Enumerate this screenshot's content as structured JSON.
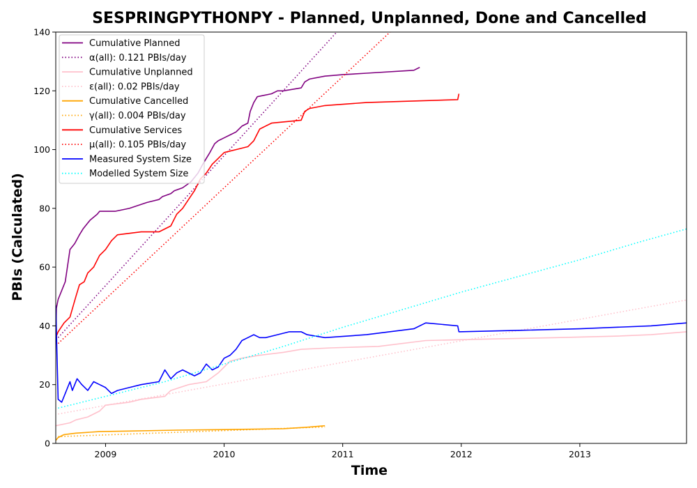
{
  "chart_data": {
    "type": "line",
    "title": "SESPRINGPYTHONPY - Planned, Unplanned, Done  and Cancelled",
    "xlabel": "Time",
    "ylabel": "PBIs (Calculated)",
    "xlim": [
      2008.58,
      2013.9
    ],
    "ylim": [
      0,
      140
    ],
    "xticks": [
      2009,
      2010,
      2011,
      2012,
      2013
    ],
    "xtick_labels": [
      "2009",
      "2010",
      "2011",
      "2012",
      "2013"
    ],
    "yticks": [
      0,
      20,
      40,
      60,
      80,
      100,
      120,
      140
    ],
    "ytick_labels": [
      "0",
      "20",
      "40",
      "60",
      "80",
      "100",
      "120",
      "140"
    ],
    "grid": false,
    "legend_position": "top-left",
    "series": [
      {
        "name": "Cumulative Planned",
        "color": "#800080",
        "style": "solid",
        "x": [
          2008.58,
          2008.585,
          2008.6,
          2008.62,
          2008.66,
          2008.7,
          2008.72,
          2008.74,
          2008.78,
          2008.81,
          2008.85,
          2008.87,
          2008.93,
          2008.95,
          2008.98,
          2009.02,
          2009.05,
          2009.08,
          2009.2,
          2009.35,
          2009.45,
          2009.48,
          2009.55,
          2009.58,
          2009.65,
          2009.72,
          2009.78,
          2009.82,
          2009.88,
          2009.92,
          2009.95,
          2010.0,
          2010.05,
          2010.1,
          2010.15,
          2010.2,
          2010.22,
          2010.25,
          2010.28,
          2010.4,
          2010.45,
          2010.5,
          2010.65,
          2010.68,
          2010.72,
          2010.85,
          2011.0,
          2011.2,
          2011.6,
          2011.65
        ],
        "y": [
          37,
          46,
          49,
          51,
          55,
          66,
          67,
          68,
          71,
          73,
          75,
          76,
          78,
          79,
          79,
          79,
          79,
          79,
          80,
          82,
          83,
          84,
          85,
          86,
          87,
          89,
          92,
          95,
          99,
          102,
          103,
          104,
          105,
          106,
          108,
          109,
          113,
          116,
          118,
          119,
          120,
          120,
          121,
          123,
          124,
          125,
          125.5,
          126,
          127,
          128
        ]
      },
      {
        "name": "α(all): 0.121 PBIs/day",
        "color": "#800080",
        "style": "dotted",
        "x": [
          2008.6,
          2010.95
        ],
        "y": [
          36,
          140
        ]
      },
      {
        "name": "Cumulative Unplanned",
        "color": "#ffc0cb",
        "style": "solid",
        "x": [
          2008.58,
          2008.7,
          2008.75,
          2008.85,
          2008.95,
          2009.0,
          2009.2,
          2009.3,
          2009.5,
          2009.55,
          2009.7,
          2009.85,
          2009.95,
          2010.05,
          2010.15,
          2010.3,
          2010.5,
          2010.65,
          2010.9,
          2011.3,
          2011.7,
          2012.2,
          2012.8,
          2013.3,
          2013.6,
          2013.9
        ],
        "y": [
          6,
          7,
          8,
          9,
          11,
          13,
          14,
          15,
          16,
          18,
          20,
          21,
          24,
          28,
          29,
          30,
          31,
          32,
          32.5,
          33,
          35,
          35.5,
          36,
          36.5,
          37,
          38
        ]
      },
      {
        "name": "ε(all): 0.02 PBIs/day",
        "color": "#ffc0cb",
        "style": "dotted",
        "x": [
          2008.6,
          2013.9
        ],
        "y": [
          10,
          48.8
        ]
      },
      {
        "name": "Cumulative Cancelled",
        "color": "#ffa500",
        "style": "solid",
        "x": [
          2008.58,
          2008.6,
          2008.65,
          2008.75,
          2008.95,
          2009.2,
          2009.6,
          2010.0,
          2010.5,
          2010.7,
          2010.85
        ],
        "y": [
          1,
          2,
          3,
          3.5,
          4,
          4.2,
          4.5,
          4.7,
          5,
          5.5,
          6
        ]
      },
      {
        "name": "γ(all): 0.004 PBIs/day",
        "color": "#ffa500",
        "style": "dotted",
        "x": [
          2008.6,
          2010.85
        ],
        "y": [
          2.3,
          5.6
        ]
      },
      {
        "name": "Cumulative Services",
        "color": "#ff0000",
        "style": "solid",
        "x": [
          2008.58,
          2008.6,
          2008.65,
          2008.7,
          2008.75,
          2008.78,
          2008.82,
          2008.85,
          2008.9,
          2008.95,
          2009.0,
          2009.05,
          2009.1,
          2009.3,
          2009.45,
          2009.5,
          2009.55,
          2009.6,
          2009.65,
          2009.7,
          2009.75,
          2009.8,
          2009.85,
          2009.9,
          2009.95,
          2010.0,
          2010.05,
          2010.1,
          2010.2,
          2010.25,
          2010.3,
          2010.4,
          2010.65,
          2010.68,
          2010.72,
          2010.85,
          2011.2,
          2011.97,
          2011.98
        ],
        "y": [
          36,
          38,
          41,
          43,
          50,
          54,
          55,
          58,
          60,
          64,
          66,
          69,
          71,
          72,
          72,
          73,
          74,
          78,
          80,
          83,
          86,
          90,
          92,
          95,
          97,
          99,
          99.5,
          100,
          101,
          103,
          107,
          109,
          110,
          113,
          114,
          115,
          116,
          117,
          119
        ]
      },
      {
        "name": "μ(all): 0.105 PBIs/day",
        "color": "#ff0000",
        "style": "dotted",
        "x": [
          2008.6,
          2011.4
        ],
        "y": [
          34,
          140
        ]
      },
      {
        "name": "Measured System Size",
        "color": "#0000ff",
        "style": "solid",
        "x": [
          2008.58,
          2008.6,
          2008.63,
          2008.66,
          2008.7,
          2008.72,
          2008.76,
          2008.8,
          2008.85,
          2008.9,
          2008.95,
          2009.0,
          2009.05,
          2009.1,
          2009.2,
          2009.3,
          2009.45,
          2009.5,
          2009.55,
          2009.6,
          2009.65,
          2009.7,
          2009.75,
          2009.8,
          2009.85,
          2009.9,
          2009.95,
          2010.0,
          2010.05,
          2010.1,
          2010.15,
          2010.2,
          2010.25,
          2010.3,
          2010.35,
          2010.45,
          2010.55,
          2010.65,
          2010.7,
          2010.85,
          2011.2,
          2011.6,
          2011.7,
          2011.97,
          2011.98,
          2012.5,
          2013.0,
          2013.6,
          2013.9
        ],
        "y": [
          47,
          15,
          14,
          17,
          21,
          18,
          22,
          20,
          18,
          21,
          20,
          19,
          17,
          18,
          19,
          20,
          21,
          25,
          22,
          24,
          25,
          24,
          23,
          24,
          27,
          25,
          26,
          29,
          30,
          32,
          35,
          36,
          37,
          36,
          36,
          37,
          38,
          38,
          37,
          36,
          37,
          39,
          41,
          40,
          38,
          38.5,
          39,
          40,
          41
        ]
      },
      {
        "name": "Modelled System Size",
        "color": "#00ffff",
        "style": "dotted",
        "x": [
          2008.6,
          2009.0,
          2009.5,
          2010.0,
          2010.5,
          2011.0,
          2011.5,
          2012.0,
          2012.5,
          2013.0,
          2013.5,
          2013.9
        ],
        "y": [
          12,
          16,
          21,
          27,
          33,
          39.5,
          45.5,
          51.5,
          57,
          62.5,
          68.5,
          73
        ]
      }
    ]
  }
}
